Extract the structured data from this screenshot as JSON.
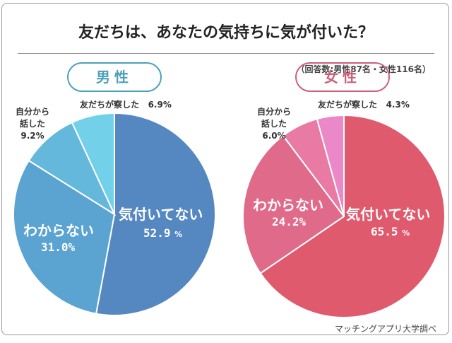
{
  "title": "友だちは、あなたの気持ちに気が付いた？",
  "note": "（回答数:男性87名・女性116名）",
  "footer": "マッチングアプリ大学調べ",
  "chart_data": [
    {
      "type": "pie",
      "title": "男性",
      "accent": "#4aa0bb",
      "categories": [
        "気付いてない",
        "わからない",
        "自分から話した",
        "友だちが察した"
      ],
      "values": [
        52.9,
        31.0,
        9.2,
        6.9
      ],
      "labels": [
        "52.9",
        "31.0%",
        "9.2%",
        "6.9%"
      ],
      "colors": [
        "#5587c0",
        "#5ba3d1",
        "#63b8dc",
        "#72d1e8"
      ],
      "start": "top",
      "direction": "clockwise"
    },
    {
      "type": "pie",
      "title": "女性",
      "accent": "#cc5f78",
      "categories": [
        "気付いてない",
        "わからない",
        "自分から話した",
        "友だちが察した"
      ],
      "values": [
        65.5,
        24.2,
        6.0,
        4.3
      ],
      "labels": [
        "65.5",
        "24.2%",
        "6.0%",
        "4.3%"
      ],
      "colors": [
        "#e05a6e",
        "#e06a8a",
        "#e87aa3",
        "#ea88c8"
      ],
      "start": "top",
      "direction": "clockwise"
    }
  ],
  "labels": {
    "jibun1": "自分から",
    "jibun2": "話した",
    "percent_sign": "%"
  }
}
